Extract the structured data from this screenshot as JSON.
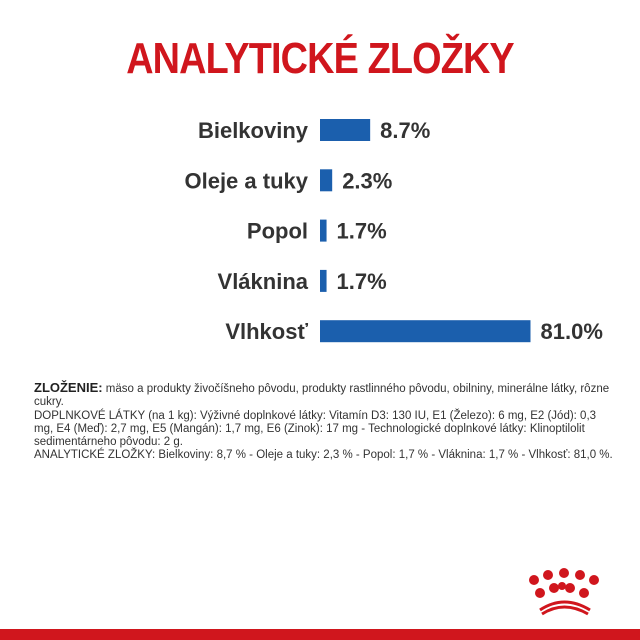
{
  "chart_data": {
    "type": "bar",
    "orientation": "horizontal",
    "title": "ANALYTICKÉ ZLOŽKY",
    "categories": [
      "Bielkoviny",
      "Oleje a tuky",
      "Popol",
      "Vláknina",
      "Vlhkosť"
    ],
    "values": [
      8.7,
      2.3,
      1.7,
      1.7,
      81.0
    ],
    "value_labels": [
      "8.7%",
      "2.3%",
      "1.7%",
      "1.7%",
      "81.0%"
    ],
    "bar_color": "#1b5fad",
    "grid": false
  },
  "composition": {
    "label": "ZLOŽENIE:",
    "text": " mäso a produkty živočíšneho pôvodu, produkty rastlinného pôvodu, obilniny, minerálne látky, rôzne cukry.",
    "additives": "DOPLNKOVÉ LÁTKY (na 1 kg): Výživné doplnkové látky: Vitamín D3: 130 IU, E1 (Železo): 6 mg, E2 (Jód): 0,3 mg, E4 (Meď): 2,7 mg, E5 (Mangán): 1,7 mg, E6 (Zinok): 17 mg - Technologické doplnkové látky: Klinoptilolit sedimentárneho pôvodu: 2 g.",
    "analytical": "ANALYTICKÉ ZLOŽKY: Bielkoviny: 8,7 % - Oleje a tuky: 2,3 % - Popol: 1,7 % - Vláknina: 1,7 % - Vlhkosť: 81,0 %."
  },
  "brand_color": "#d0161d",
  "logo": "royal-canin-crown"
}
